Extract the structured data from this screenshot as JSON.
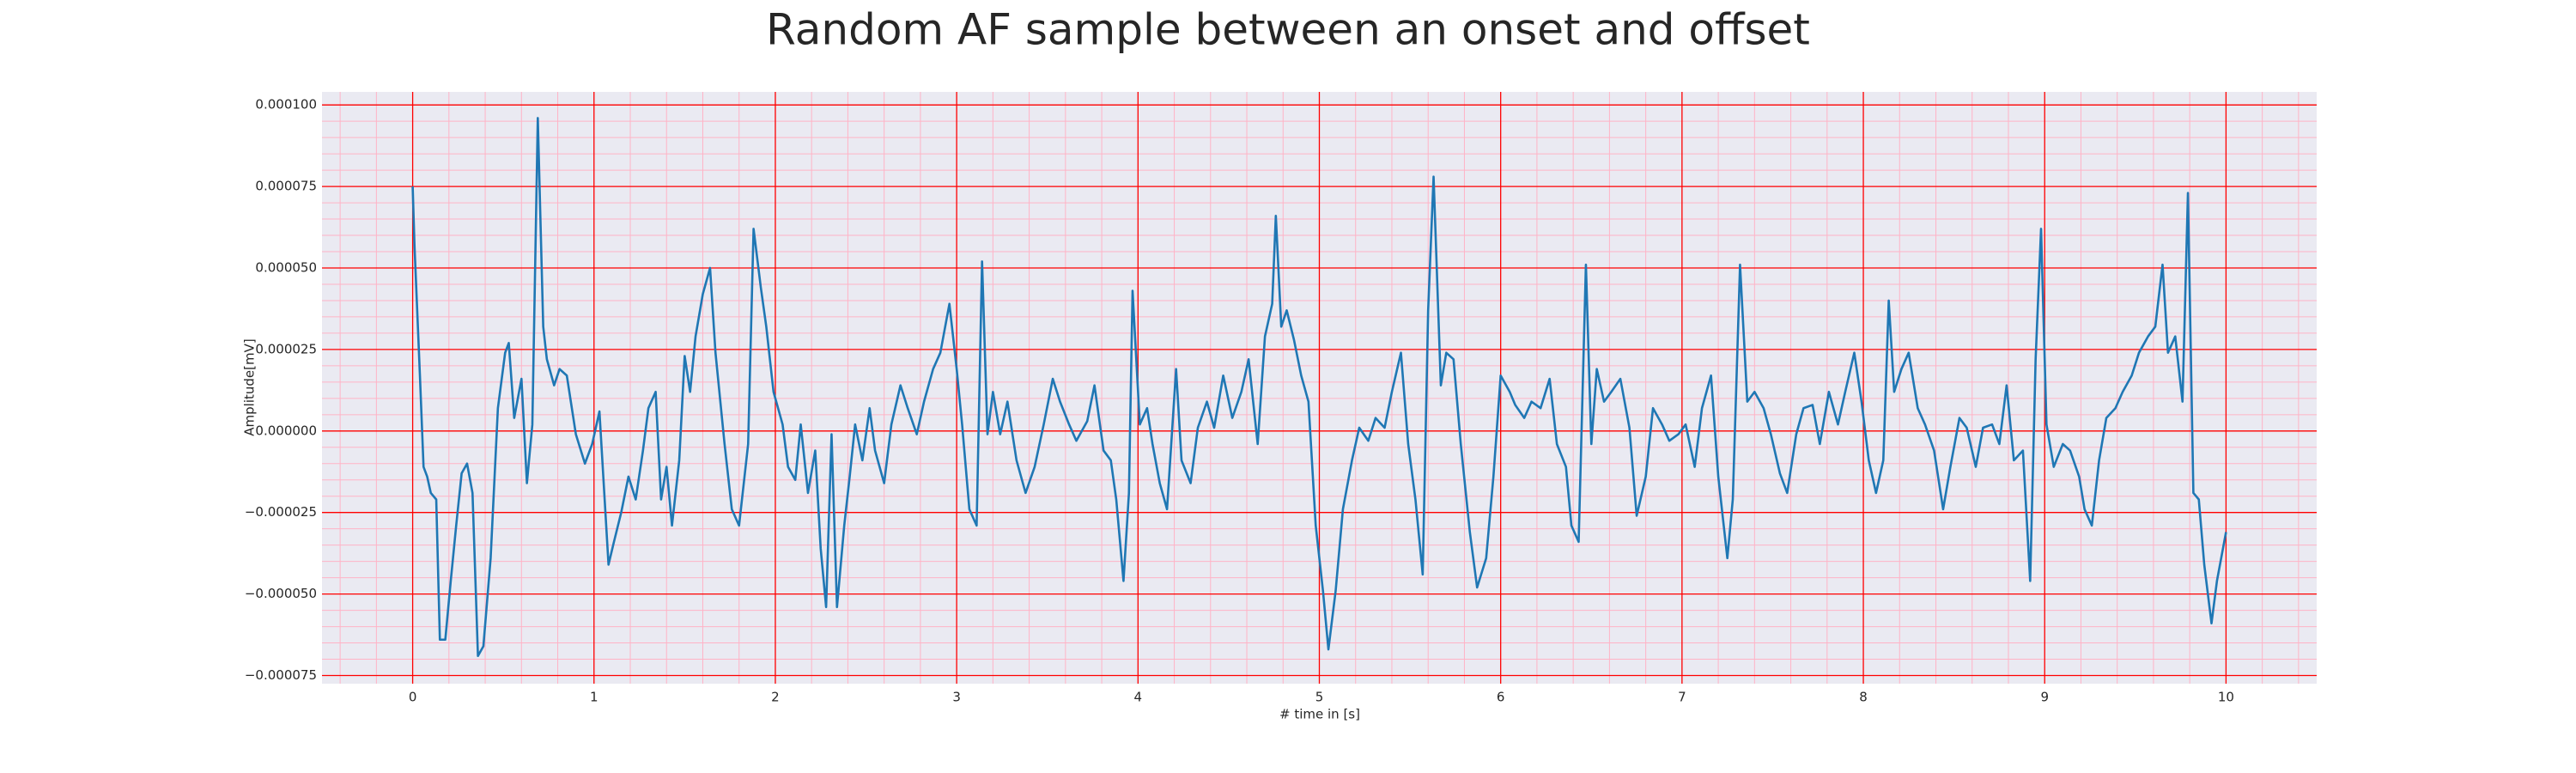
{
  "chart_data": {
    "type": "line",
    "title": "Random AF sample between an onset and offset",
    "xlabel": "# time in [s]",
    "ylabel": "Amplitude[mV]",
    "color": "#1f77b4",
    "grid": true,
    "grid_color": "#ff0000",
    "minor_grid_color": "#ffb3c6",
    "minor_divisions": 5,
    "background": "#eaeaf2",
    "xlim": [
      -0.5,
      10.5
    ],
    "ylim": [
      -7.75e-05,
      0.000104
    ],
    "xticks": [
      0,
      1,
      2,
      3,
      4,
      5,
      6,
      7,
      8,
      9,
      10
    ],
    "yticks": [
      {
        "value": -7.5e-05,
        "label": "−0.000075"
      },
      {
        "value": -5e-05,
        "label": "−0.000050"
      },
      {
        "value": -2.5e-05,
        "label": "−0.000025"
      },
      {
        "value": 0,
        "label": "0.000000"
      },
      {
        "value": 2.5e-05,
        "label": "0.000025"
      },
      {
        "value": 5e-05,
        "label": "0.000050"
      },
      {
        "value": 7.5e-05,
        "label": "0.000075"
      },
      {
        "value": 0.0001,
        "label": "0.000100"
      }
    ],
    "x": [
      0,
      0.01,
      0.04,
      0.06,
      0.08,
      0.1,
      0.13,
      0.15,
      0.18,
      0.21,
      0.24,
      0.27,
      0.3,
      0.33,
      0.36,
      0.39,
      0.43,
      0.47,
      0.51,
      0.53,
      0.56,
      0.6,
      0.63,
      0.66,
      0.69,
      0.72,
      0.74,
      0.78,
      0.81,
      0.85,
      0.9,
      0.95,
      0.99,
      1.03,
      1.08,
      1.11,
      1.15,
      1.19,
      1.23,
      1.27,
      1.3,
      1.34,
      1.37,
      1.4,
      1.43,
      1.47,
      1.5,
      1.53,
      1.56,
      1.6,
      1.64,
      1.67,
      1.72,
      1.76,
      1.8,
      1.85,
      1.88,
      1.92,
      1.95,
      1.99,
      2.04,
      2.07,
      2.11,
      2.14,
      2.18,
      2.22,
      2.25,
      2.28,
      2.31,
      2.34,
      2.38,
      2.41,
      2.44,
      2.48,
      2.52,
      2.55,
      2.6,
      2.64,
      2.69,
      2.73,
      2.78,
      2.82,
      2.87,
      2.91,
      2.96,
      3.0,
      3.03,
      3.07,
      3.11,
      3.14,
      3.17,
      3.2,
      3.24,
      3.28,
      3.33,
      3.38,
      3.43,
      3.48,
      3.53,
      3.57,
      3.62,
      3.66,
      3.72,
      3.76,
      3.81,
      3.85,
      3.88,
      3.92,
      3.95,
      3.97,
      4.01,
      4.05,
      4.08,
      4.12,
      4.16,
      4.21,
      4.24,
      4.29,
      4.33,
      4.38,
      4.42,
      4.47,
      4.52,
      4.57,
      4.61,
      4.66,
      4.7,
      4.74,
      4.76,
      4.79,
      4.82,
      4.86,
      4.9,
      4.94,
      4.98,
      5.02,
      5.05,
      5.09,
      5.13,
      5.18,
      5.22,
      5.27,
      5.31,
      5.36,
      5.4,
      5.45,
      5.49,
      5.53,
      5.57,
      5.6,
      5.63,
      5.67,
      5.7,
      5.74,
      5.78,
      5.83,
      5.87,
      5.92,
      5.96,
      6.0,
      6.05,
      6.08,
      6.13,
      6.17,
      6.22,
      6.27,
      6.31,
      6.36,
      6.39,
      6.43,
      6.47,
      6.5,
      6.53,
      6.57,
      6.61,
      6.66,
      6.71,
      6.75,
      6.8,
      6.84,
      6.89,
      6.93,
      6.98,
      7.02,
      7.07,
      7.11,
      7.16,
      7.2,
      7.25,
      7.28,
      7.32,
      7.36,
      7.4,
      7.45,
      7.49,
      7.54,
      7.58,
      7.63,
      7.67,
      7.72,
      7.76,
      7.81,
      7.86,
      7.9,
      7.95,
      7.99,
      8.03,
      8.07,
      8.11,
      8.14,
      8.17,
      8.21,
      8.25,
      8.3,
      8.34,
      8.39,
      8.44,
      8.48,
      8.53,
      8.57,
      8.62,
      8.66,
      8.71,
      8.75,
      8.79,
      8.83,
      8.88,
      8.92,
      8.95,
      8.98,
      9.01,
      9.05,
      9.1,
      9.14,
      9.19,
      9.22,
      9.26,
      9.3,
      9.34,
      9.39,
      9.43,
      9.48,
      9.52,
      9.57,
      9.61,
      9.65,
      9.68,
      9.72,
      9.76,
      9.79,
      9.82,
      9.85,
      9.88,
      9.92,
      9.95,
      10.0
    ],
    "values": [
      7.5e-05,
      5.7e-05,
      1.7e-05,
      -1.1e-05,
      -1.4e-05,
      -1.9e-05,
      -2.1e-05,
      -6.4e-05,
      -6.4e-05,
      -4.6e-05,
      -2.9e-05,
      -1.3e-05,
      -1e-05,
      -1.9e-05,
      -6.9e-05,
      -6.6e-05,
      -3.9e-05,
      7e-06,
      2.4e-05,
      2.7e-05,
      4e-06,
      1.6e-05,
      -1.6e-05,
      2e-06,
      9.6e-05,
      3.2e-05,
      2.2e-05,
      1.4e-05,
      1.9e-05,
      1.7e-05,
      -1e-06,
      -1e-05,
      -4e-06,
      6e-06,
      -4.1e-05,
      -3.4e-05,
      -2.5e-05,
      -1.4e-05,
      -2.1e-05,
      -6e-06,
      7e-06,
      1.2e-05,
      -2.1e-05,
      -1.1e-05,
      -2.9e-05,
      -9e-06,
      2.3e-05,
      1.2e-05,
      2.9e-05,
      4.2e-05,
      5e-05,
      2.4e-05,
      -4e-06,
      -2.4e-05,
      -2.9e-05,
      -4e-06,
      6.2e-05,
      4.4e-05,
      3.2e-05,
      1.2e-05,
      2e-06,
      -1.1e-05,
      -1.5e-05,
      2e-06,
      -1.9e-05,
      -6e-06,
      -3.6e-05,
      -5.4e-05,
      -1e-06,
      -5.4e-05,
      -2.9e-05,
      -1.4e-05,
      2e-06,
      -9e-06,
      7e-06,
      -6e-06,
      -1.6e-05,
      2e-06,
      1.4e-05,
      7e-06,
      -1e-06,
      9e-06,
      1.9e-05,
      2.4e-05,
      3.9e-05,
      1.9e-05,
      2e-06,
      -2.4e-05,
      -2.9e-05,
      5.2e-05,
      -1e-06,
      1.2e-05,
      -1e-06,
      9e-06,
      -9e-06,
      -1.9e-05,
      -1.1e-05,
      2e-06,
      1.6e-05,
      9e-06,
      2e-06,
      -3e-06,
      3e-06,
      1.4e-05,
      -6e-06,
      -9e-06,
      -2.1e-05,
      -4.6e-05,
      -1.9e-05,
      4.3e-05,
      2e-06,
      7e-06,
      -4e-06,
      -1.6e-05,
      -2.4e-05,
      1.9e-05,
      -9e-06,
      -1.6e-05,
      1e-06,
      9e-06,
      1e-06,
      1.7e-05,
      4e-06,
      1.2e-05,
      2.2e-05,
      -4e-06,
      2.9e-05,
      3.9e-05,
      6.6e-05,
      3.2e-05,
      3.7e-05,
      2.8e-05,
      1.7e-05,
      9e-06,
      -2.9e-05,
      -4.9e-05,
      -6.7e-05,
      -4.9e-05,
      -2.4e-05,
      -9e-06,
      1e-06,
      -3e-06,
      4e-06,
      1e-06,
      1.2e-05,
      2.4e-05,
      -4e-06,
      -2.1e-05,
      -4.4e-05,
      3.7e-05,
      7.8e-05,
      1.4e-05,
      2.4e-05,
      2.2e-05,
      -4e-06,
      -3.1e-05,
      -4.8e-05,
      -3.9e-05,
      -1.4e-05,
      1.7e-05,
      1.2e-05,
      8e-06,
      4e-06,
      9e-06,
      7e-06,
      1.6e-05,
      -4e-06,
      -1.1e-05,
      -2.9e-05,
      -3.4e-05,
      5.1e-05,
      -4e-06,
      1.9e-05,
      9e-06,
      1.2e-05,
      1.6e-05,
      1e-06,
      -2.6e-05,
      -1.4e-05,
      7e-06,
      2e-06,
      -3e-06,
      -1e-06,
      2e-06,
      -1.1e-05,
      7e-06,
      1.7e-05,
      -1.4e-05,
      -3.9e-05,
      -2.1e-05,
      5.1e-05,
      9e-06,
      1.2e-05,
      7e-06,
      -1e-06,
      -1.3e-05,
      -1.9e-05,
      -1e-06,
      7e-06,
      8e-06,
      -4e-06,
      1.2e-05,
      2e-06,
      1.2e-05,
      2.4e-05,
      9e-06,
      -9e-06,
      -1.9e-05,
      -9e-06,
      4e-05,
      1.2e-05,
      1.9e-05,
      2.4e-05,
      7e-06,
      2e-06,
      -6e-06,
      -2.4e-05,
      -1.1e-05,
      4e-06,
      1e-06,
      -1.1e-05,
      1e-06,
      2e-06,
      -4e-06,
      1.4e-05,
      -9e-06,
      -6e-06,
      -4.6e-05,
      2.2e-05,
      6.2e-05,
      2e-06,
      -1.1e-05,
      -4e-06,
      -6e-06,
      -1.4e-05,
      -2.4e-05,
      -2.9e-05,
      -9e-06,
      4e-06,
      7e-06,
      1.2e-05,
      1.7e-05,
      2.4e-05,
      2.9e-05,
      3.2e-05,
      5.1e-05,
      2.4e-05,
      2.9e-05,
      9e-06,
      7.3e-05,
      -1.9e-05,
      -2.1e-05,
      -4.1e-05,
      -5.9e-05,
      -4.6e-05,
      -3.1e-05
    ]
  }
}
